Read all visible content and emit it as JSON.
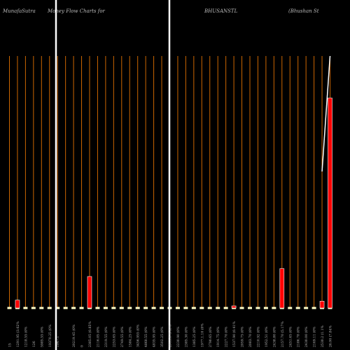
{
  "header": {
    "brand": "MunafaSutra",
    "chart_title": "Money Flow  Charts for",
    "symbol": "BHUSANSTL",
    "company": "(Bhushan  St"
  },
  "chart_data": {
    "type": "bar",
    "title": "Money Flow  Charts for BHUSANSTL",
    "categories": [
      "15",
      "1291.95 (3.62%",
      "1218.55 (0%",
      "126",
      "5985.55 (0%",
      "19370.25 (0%",
      "1947.1",
      "",
      "20219.45 (0%",
      "0",
      "2385.05 (0.85%",
      "2116.05 (0%",
      "2319.55 (0%",
      "2253.65 (0%",
      "2749.55 (0%",
      "1584.25 (0%",
      "3456.955 (0%",
      "4860.55 (0%",
      "4835.95 (0%",
      "3502.25 (0%",
      "2911.075 (0%",
      "2230.90 (0%",
      "2385.30 (0%",
      "1385.25 (0%",
      "1977.1.10 (0%",
      "2790.65 (0%",
      "1914.75 (0%",
      "2227.70 (0%",
      "1537.90 (0.41%",
      "2059.75 (0%",
      "2083.70 (0%",
      "2210.92 (0%",
      "1952.51 (0%",
      "2438.80 (0%",
      "2157.70 (5.17%",
      "2451.65 (0%",
      "2186.78 (0%",
      "2430.00 (0%",
      "2169.11 (0%",
      "2530.2 (1.1%",
      "26.00 (7.84%"
    ],
    "values": [
      0,
      1.5,
      0,
      0,
      0,
      0,
      0,
      0,
      0,
      0,
      6,
      0,
      0,
      0,
      0,
      0,
      0,
      0,
      0,
      0,
      0,
      0,
      0,
      0,
      0,
      0,
      0,
      0,
      0.4,
      0,
      0,
      0,
      0,
      0,
      7.5,
      0,
      0,
      0,
      0,
      1.3,
      40
    ],
    "highlight": [
      false,
      true,
      false,
      false,
      false,
      false,
      false,
      false,
      false,
      false,
      true,
      false,
      false,
      false,
      false,
      false,
      false,
      false,
      false,
      false,
      false,
      false,
      false,
      false,
      false,
      false,
      false,
      false,
      true,
      false,
      false,
      false,
      false,
      false,
      true,
      false,
      false,
      false,
      false,
      true,
      true
    ],
    "line": [
      26,
      48
    ],
    "ylim": [
      0,
      48
    ],
    "grid": true,
    "colors": {
      "background": "#000000",
      "bar": "#ff0000",
      "bar_border": "#ffffff",
      "baseline": "#ffffcc",
      "grid": "#cc6600",
      "divider": "#ffffff",
      "line": "#ffffff",
      "label": "#bbbbbb"
    }
  }
}
